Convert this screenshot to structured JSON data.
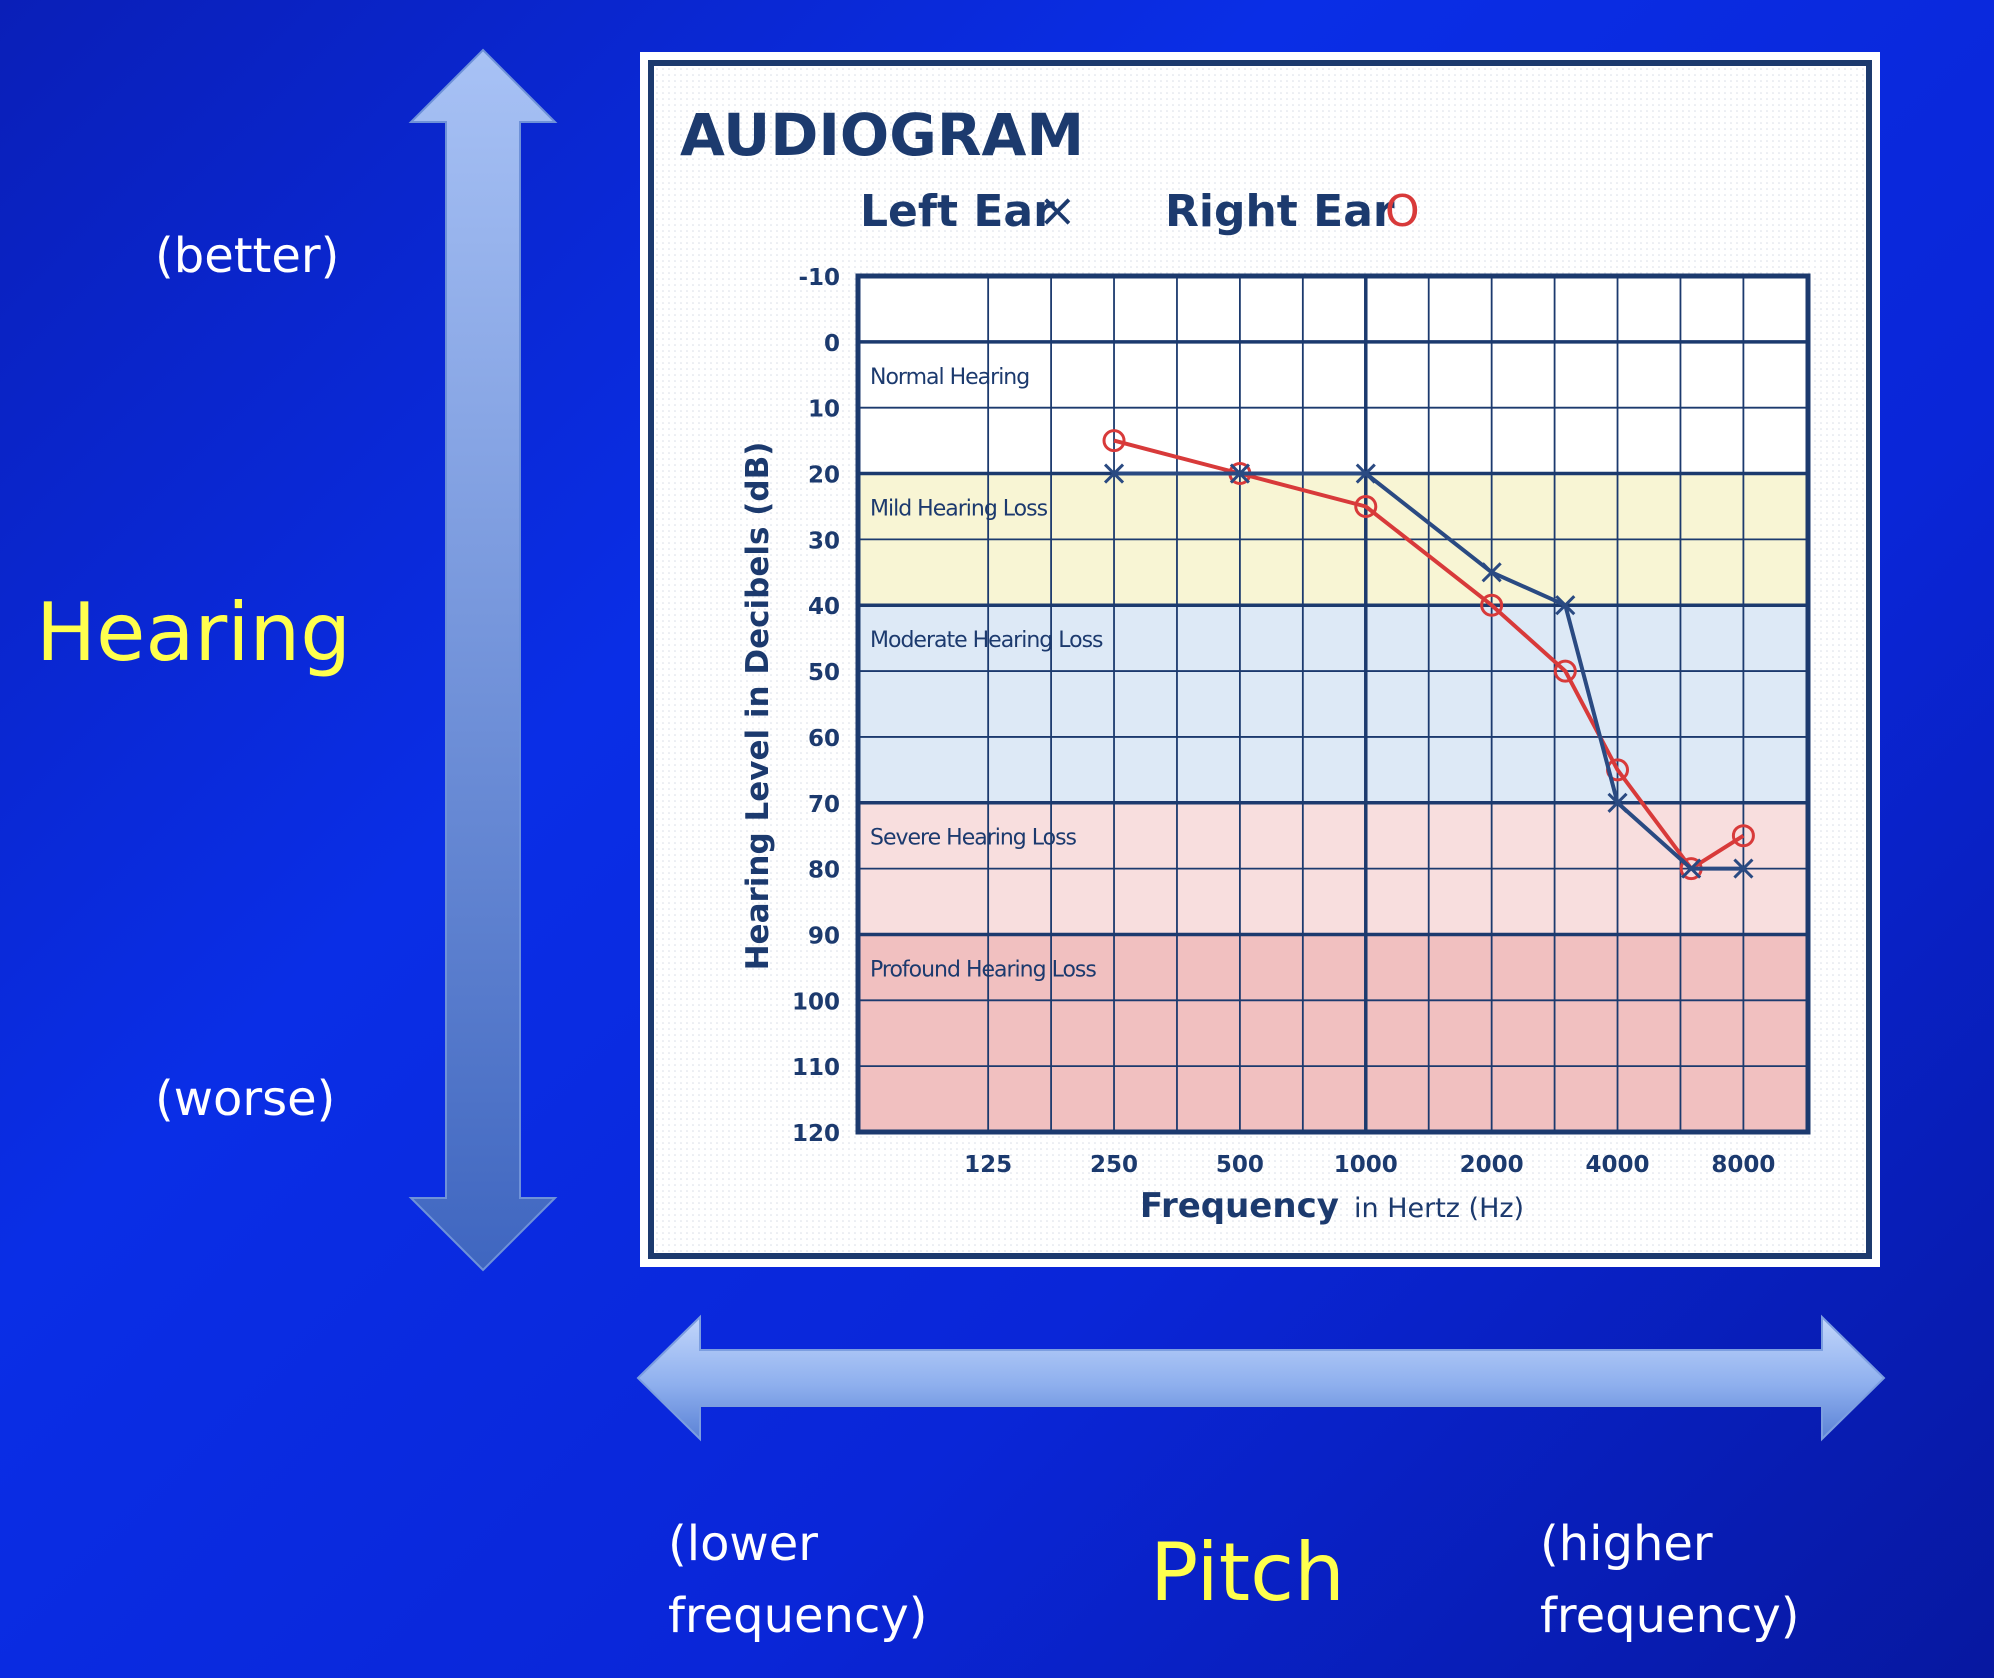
{
  "slide": {
    "hearing_label": "Hearing",
    "better_label": "(better)",
    "worse_label": "(worse)",
    "pitch_label": "Pitch",
    "lower_line1": "(lower",
    "lower_line2": "frequency)",
    "higher_line1": "(higher",
    "higher_line2": "frequency)"
  },
  "colors": {
    "background": "#0a26d8",
    "slide_label_yellow": "#ffff4d",
    "slide_label_white": "#ffffff",
    "chart_navy": "#1c3a6e",
    "right_ear_red": "#d83a3a",
    "left_ear_blue": "#2a4a82",
    "band_mild": "#f8f5d4",
    "band_moderate": "#dde9f6",
    "band_severe": "#f8dede",
    "band_profound": "#f1c0c0"
  },
  "chart_data": {
    "type": "line",
    "title": "AUDIOGRAM",
    "legend": {
      "left": "Left Ear",
      "left_symbol": "×",
      "right": "Right Ear",
      "right_symbol": "O",
      "placement": "top"
    },
    "xlabel_bold": "Frequency",
    "xlabel_rest": "in Hertz (Hz)",
    "ylabel": "Hearing Level in Decibels (dB)",
    "x_scale": "log2",
    "xlim": [
      125,
      8000
    ],
    "ylim": [
      -10,
      120
    ],
    "y_inverted": true,
    "x_ticks": [
      125,
      250,
      500,
      1000,
      2000,
      4000,
      8000
    ],
    "x_tick_labels": [
      "125",
      "250",
      "500",
      "1000",
      "2000",
      "4000",
      "8000"
    ],
    "y_ticks": [
      -10,
      0,
      10,
      20,
      30,
      40,
      50,
      60,
      70,
      80,
      90,
      100,
      110,
      120
    ],
    "y_tick_labels": [
      "-10",
      "0",
      "10",
      "20",
      "30",
      "40",
      "50",
      "60",
      "70",
      "80",
      "90",
      "100",
      "110",
      "120"
    ],
    "grid": true,
    "bands": [
      {
        "label": "Normal Hearing",
        "from": 0,
        "to": 20,
        "color": "#ffffff"
      },
      {
        "label": "Mild Hearing Loss",
        "from": 20,
        "to": 40,
        "color": "#f8f5d4"
      },
      {
        "label": "Moderate Hearing Loss",
        "from": 40,
        "to": 70,
        "color": "#dde9f6"
      },
      {
        "label": "Severe Hearing Loss",
        "from": 70,
        "to": 90,
        "color": "#f8dede"
      },
      {
        "label": "Profound Hearing Loss",
        "from": 90,
        "to": 120,
        "color": "#f1c0c0"
      }
    ],
    "series": [
      {
        "name": "Right Ear",
        "marker": "circle",
        "color": "#d83a3a",
        "x": [
          250,
          500,
          1000,
          2000,
          3000,
          4000,
          6000,
          8000
        ],
        "y": [
          15,
          20,
          25,
          40,
          50,
          65,
          80,
          75
        ]
      },
      {
        "name": "Left Ear",
        "marker": "x",
        "color": "#2a4a82",
        "x": [
          250,
          500,
          1000,
          2000,
          3000,
          4000,
          6000,
          8000
        ],
        "y": [
          20,
          20,
          20,
          35,
          40,
          70,
          80,
          80
        ]
      }
    ]
  }
}
